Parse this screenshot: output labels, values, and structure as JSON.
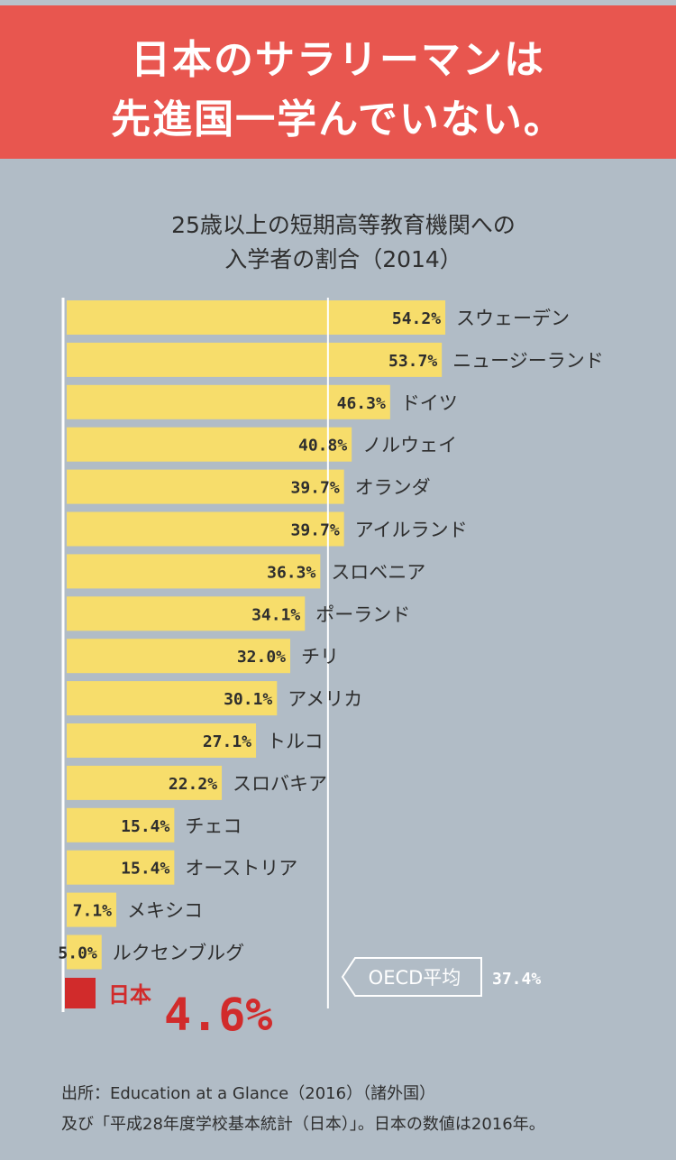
{
  "header": {
    "line1": "日本のサラリーマンは",
    "line2": "先進国一学んでいない。"
  },
  "chart_data": {
    "type": "bar",
    "orientation": "horizontal",
    "title_line1": "25歳以上の短期高等教育機関への",
    "title_line2": "入学者の割合（2014）",
    "categories": [
      "スウェーデン",
      "ニュージーランド",
      "ドイツ",
      "ノルウェイ",
      "オランダ",
      "アイルランド",
      "スロベニア",
      "ポーランド",
      "チリ",
      "アメリカ",
      "トルコ",
      "スロバキア",
      "チェコ",
      "オーストリア",
      "メキシコ",
      "ルクセンブルグ"
    ],
    "values": [
      54.2,
      53.7,
      46.3,
      40.8,
      39.7,
      39.7,
      36.3,
      34.1,
      32.0,
      30.1,
      27.1,
      22.2,
      15.4,
      15.4,
      7.1,
      5.0
    ],
    "value_labels": [
      "54.2%",
      "53.7%",
      "46.3%",
      "40.8%",
      "39.7%",
      "39.7%",
      "36.3%",
      "34.1%",
      "32.0%",
      "30.1%",
      "27.1%",
      "22.2%",
      "15.4%",
      "15.4%",
      "7.1%",
      "5.0%"
    ],
    "unit": "%",
    "bar_color": "#f7dd6b",
    "reference_line": {
      "label": "OECD平均",
      "value": 37.4,
      "value_label": "37.4%"
    },
    "highlight": {
      "label": "日本",
      "value": 4.6,
      "value_label": "4.6%",
      "color": "#d12b2b"
    }
  },
  "source": {
    "line1": "出所：Education at a Glance（2016）（諸外国）",
    "line2": "及び「平成28年度学校基本統計（日本）」。日本の数値は2016年。"
  }
}
